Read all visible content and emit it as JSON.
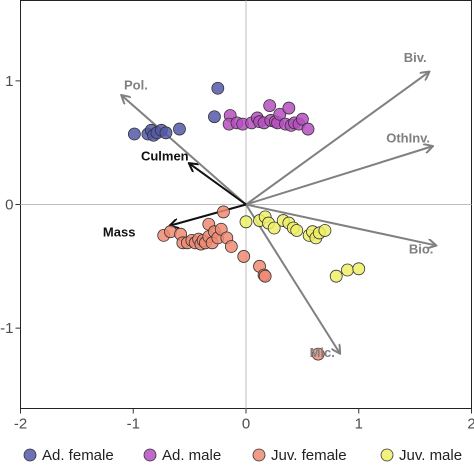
{
  "chart_data": {
    "type": "scatter",
    "xlim": [
      -2.0,
      2.0
    ],
    "ylim": [
      -1.65,
      1.65
    ],
    "x_ticks": [
      -2,
      -1,
      0,
      1,
      2
    ],
    "y_ticks": [
      -1,
      0,
      1
    ],
    "x_tick_labels": [
      "-2",
      "-1",
      "0",
      "1",
      "2"
    ],
    "y_tick_labels": [
      "-1",
      "0",
      "1"
    ],
    "reference_lines": {
      "x": 0,
      "y": 0
    },
    "grid": false,
    "legend_position": "bottom",
    "series": [
      {
        "name": "Ad. female",
        "color": "#5458A8",
        "points": [
          [
            -0.99,
            0.57
          ],
          [
            -0.87,
            0.57
          ],
          [
            -0.84,
            0.6
          ],
          [
            -0.82,
            0.56
          ],
          [
            -0.79,
            0.58
          ],
          [
            -0.75,
            0.6
          ],
          [
            -0.71,
            0.58
          ],
          [
            -0.59,
            0.61
          ],
          [
            -0.28,
            0.71
          ],
          [
            -0.25,
            0.94
          ]
        ]
      },
      {
        "name": "Ad. male",
        "color": "#B64FC0",
        "points": [
          [
            -0.14,
            0.72
          ],
          [
            -0.15,
            0.65
          ],
          [
            -0.08,
            0.66
          ],
          [
            -0.03,
            0.65
          ],
          [
            0.05,
            0.66
          ],
          [
            0.1,
            0.7
          ],
          [
            0.12,
            0.67
          ],
          [
            0.16,
            0.66
          ],
          [
            0.21,
            0.8
          ],
          [
            0.22,
            0.68
          ],
          [
            0.26,
            0.67
          ],
          [
            0.28,
            0.66
          ],
          [
            0.3,
            0.73
          ],
          [
            0.35,
            0.65
          ],
          [
            0.38,
            0.78
          ],
          [
            0.4,
            0.64
          ],
          [
            0.43,
            0.66
          ],
          [
            0.47,
            0.65
          ],
          [
            0.5,
            0.69
          ],
          [
            0.55,
            0.61
          ]
        ]
      },
      {
        "name": "Juv. female",
        "color": "#F08A72",
        "points": [
          [
            -0.73,
            -0.25
          ],
          [
            -0.67,
            -0.22
          ],
          [
            -0.58,
            -0.24
          ],
          [
            -0.56,
            -0.31
          ],
          [
            -0.52,
            -0.31
          ],
          [
            -0.48,
            -0.29
          ],
          [
            -0.45,
            -0.31
          ],
          [
            -0.42,
            -0.28
          ],
          [
            -0.4,
            -0.32
          ],
          [
            -0.38,
            -0.29
          ],
          [
            -0.36,
            -0.31
          ],
          [
            -0.33,
            -0.26
          ],
          [
            -0.33,
            -0.16
          ],
          [
            -0.3,
            -0.31
          ],
          [
            -0.28,
            -0.22
          ],
          [
            -0.25,
            -0.27
          ],
          [
            -0.22,
            -0.2
          ],
          [
            -0.2,
            -0.06
          ],
          [
            -0.17,
            -0.27
          ],
          [
            -0.13,
            -0.34
          ],
          [
            -0.02,
            -0.42
          ],
          [
            0.12,
            -0.5
          ],
          [
            0.16,
            -0.57
          ],
          [
            0.17,
            -0.58
          ],
          [
            0.64,
            -1.21
          ]
        ]
      },
      {
        "name": "Juv. male",
        "color": "#EEEE66",
        "points": [
          [
            0.0,
            -0.14
          ],
          [
            0.12,
            -0.13
          ],
          [
            0.17,
            -0.1
          ],
          [
            0.2,
            -0.15
          ],
          [
            0.25,
            -0.19
          ],
          [
            0.33,
            -0.13
          ],
          [
            0.38,
            -0.15
          ],
          [
            0.42,
            -0.19
          ],
          [
            0.45,
            -0.21
          ],
          [
            0.56,
            -0.25
          ],
          [
            0.59,
            -0.22
          ],
          [
            0.62,
            -0.27
          ],
          [
            0.65,
            -0.23
          ],
          [
            0.7,
            -0.21
          ],
          [
            0.8,
            -0.58
          ],
          [
            0.9,
            -0.53
          ],
          [
            1.0,
            -0.52
          ]
        ]
      }
    ],
    "arrows": [
      {
        "label": "Biv.",
        "x": 1.62,
        "y": 1.07,
        "color": "#808080"
      },
      {
        "label": "OthInv.",
        "x": 1.65,
        "y": 0.47,
        "color": "#808080"
      },
      {
        "label": "Bio.",
        "x": 1.68,
        "y": -0.33,
        "color": "#808080"
      },
      {
        "label": "Mic.",
        "x": 0.83,
        "y": -1.2,
        "color": "#808080"
      },
      {
        "label": "Pol.",
        "x": -1.1,
        "y": 0.88,
        "color": "#808080"
      },
      {
        "label": "Culmen",
        "x": -0.5,
        "y": 0.33,
        "color": "#111111"
      },
      {
        "label": "Mass",
        "x": -0.67,
        "y": -0.17,
        "color": "#111111"
      }
    ]
  }
}
